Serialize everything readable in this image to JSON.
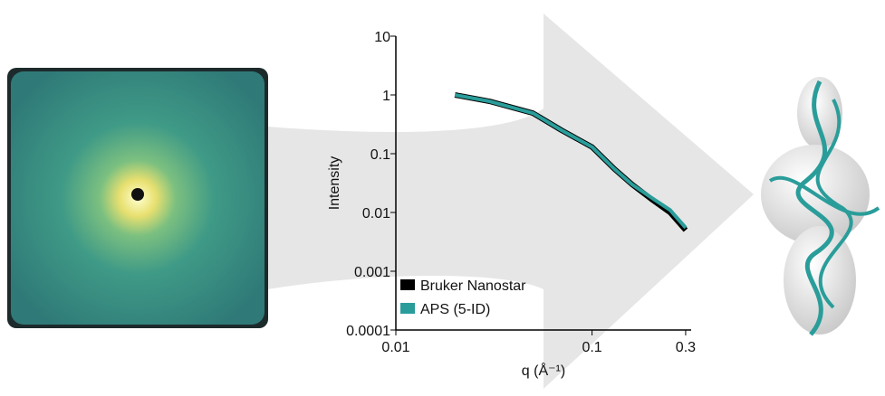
{
  "chart_data": {
    "type": "line",
    "x_label": "q (Å⁻¹)",
    "y_label": "Intensity",
    "x": [
      0.02,
      0.03,
      0.05,
      0.07,
      0.1,
      0.13,
      0.16,
      0.2,
      0.25,
      0.3
    ],
    "series": [
      {
        "name": "Bruker Nanostar",
        "color": "#000000",
        "values": [
          1.0,
          0.78,
          0.49,
          0.25,
          0.13,
          0.055,
          0.03,
          0.017,
          0.01,
          0.005
        ]
      },
      {
        "name": "APS (5-ID)",
        "color": "#2a9d9a",
        "values": [
          1.0,
          0.78,
          0.49,
          0.25,
          0.13,
          0.055,
          0.03,
          0.018,
          0.011,
          0.0055
        ]
      }
    ],
    "xlog": true,
    "ylog": true,
    "xlim": [
      0.01,
      0.32
    ],
    "ylim": [
      0.0001,
      10
    ],
    "xticks": [
      0.01,
      0.1,
      0.3
    ],
    "yticks": [
      0.0001,
      0.001,
      0.01,
      0.1,
      1,
      10
    ],
    "legend": "lower left"
  }
}
